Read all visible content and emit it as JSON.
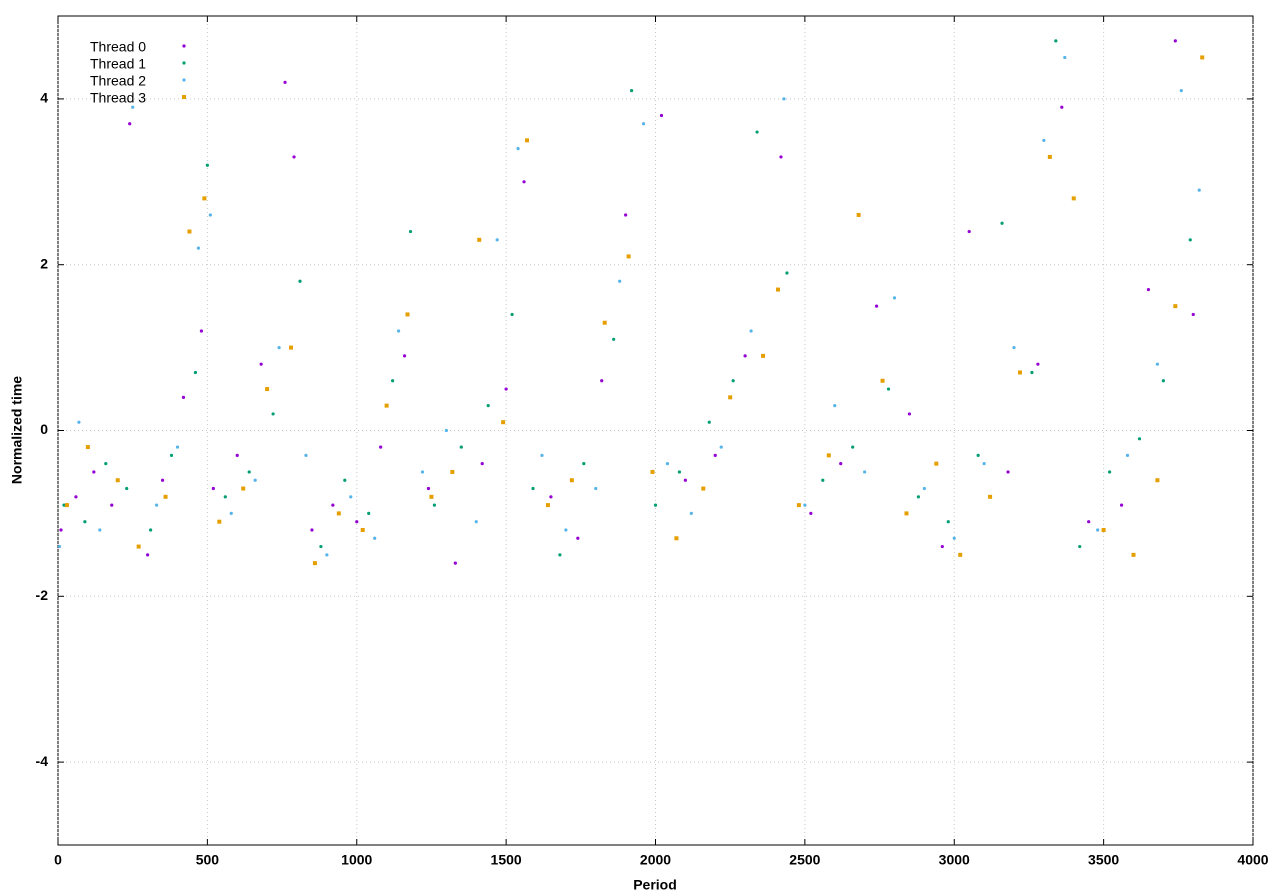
{
  "chart_data": {
    "type": "scatter",
    "x_label": "Period",
    "y_label": "Normalized time",
    "xlim": [
      0,
      4000
    ],
    "ylim": [
      -5,
      5
    ],
    "xticks": [
      0,
      500,
      1000,
      1500,
      2000,
      2500,
      3000,
      3500,
      4000
    ],
    "yticks": [
      -4,
      -2,
      0,
      2,
      4
    ],
    "grid": true,
    "legend": "top-left",
    "series": [
      {
        "name": "Thread 0",
        "color": "#9400d3",
        "marker": "dot",
        "x": [
          10,
          60,
          120,
          180,
          240,
          300,
          350,
          420,
          480,
          520,
          600,
          680,
          760,
          790,
          850,
          920,
          1000,
          1080,
          1160,
          1240,
          1330,
          1420,
          1500,
          1560,
          1650,
          1740,
          1820,
          1900,
          2020,
          2100,
          2200,
          2300,
          2420,
          2520,
          2620,
          2740,
          2850,
          2960,
          3050,
          3180,
          3280,
          3360,
          3450,
          3560,
          3650,
          3740,
          3800
        ],
        "values": [
          -1.2,
          -0.8,
          -0.5,
          -0.9,
          3.7,
          -1.5,
          -0.6,
          0.4,
          1.2,
          -0.7,
          -0.3,
          0.8,
          4.2,
          3.3,
          -1.2,
          -0.9,
          -1.1,
          -0.2,
          0.9,
          -0.7,
          -1.6,
          -0.4,
          0.5,
          3.0,
          -0.8,
          -1.3,
          0.6,
          2.6,
          3.8,
          -0.6,
          -0.3,
          0.9,
          3.3,
          -1.0,
          -0.4,
          1.5,
          0.2,
          -1.4,
          2.4,
          -0.5,
          0.8,
          3.9,
          -1.1,
          -0.9,
          1.7,
          4.7,
          1.4
        ]
      },
      {
        "name": "Thread 1",
        "color": "#009e73",
        "marker": "dot",
        "x": [
          20,
          90,
          160,
          230,
          310,
          380,
          460,
          500,
          560,
          640,
          720,
          810,
          880,
          960,
          1040,
          1120,
          1180,
          1260,
          1350,
          1440,
          1520,
          1590,
          1680,
          1760,
          1860,
          1920,
          2000,
          2080,
          2180,
          2260,
          2340,
          2440,
          2560,
          2660,
          2780,
          2880,
          2980,
          3080,
          3160,
          3260,
          3340,
          3420,
          3520,
          3620,
          3700,
          3790
        ],
        "values": [
          -0.9,
          -1.1,
          -0.4,
          -0.7,
          -1.2,
          -0.3,
          0.7,
          3.2,
          -0.8,
          -0.5,
          0.2,
          1.8,
          -1.4,
          -0.6,
          -1.0,
          0.6,
          2.4,
          -0.9,
          -0.2,
          0.3,
          1.4,
          -0.7,
          -1.5,
          -0.4,
          1.1,
          4.1,
          -0.9,
          -0.5,
          0.1,
          0.6,
          3.6,
          1.9,
          -0.6,
          -0.2,
          0.5,
          -0.8,
          -1.1,
          -0.3,
          2.5,
          0.7,
          4.7,
          -1.4,
          -0.5,
          -0.1,
          0.6,
          2.3
        ]
      },
      {
        "name": "Thread 2",
        "color": "#56b4e9",
        "marker": "dot",
        "x": [
          5,
          70,
          140,
          250,
          330,
          400,
          470,
          510,
          580,
          660,
          740,
          830,
          900,
          980,
          1060,
          1140,
          1220,
          1300,
          1400,
          1470,
          1540,
          1620,
          1700,
          1800,
          1880,
          1960,
          2040,
          2120,
          2220,
          2320,
          2430,
          2500,
          2600,
          2700,
          2800,
          2900,
          3000,
          3100,
          3200,
          3300,
          3370,
          3480,
          3580,
          3680,
          3760,
          3820
        ],
        "values": [
          -1.4,
          0.1,
          -1.2,
          3.9,
          -0.9,
          -0.2,
          2.2,
          2.6,
          -1.0,
          -0.6,
          1.0,
          -0.3,
          -1.5,
          -0.8,
          -1.3,
          1.2,
          -0.5,
          0,
          -1.1,
          2.3,
          3.4,
          -0.3,
          -1.2,
          -0.7,
          1.8,
          3.7,
          -0.4,
          -1.0,
          -0.2,
          1.2,
          4.0,
          -0.9,
          0.3,
          -0.5,
          1.6,
          -0.7,
          -1.3,
          -0.4,
          1.0,
          3.5,
          4.5,
          -1.2,
          -0.3,
          0.8,
          4.1,
          2.9
        ]
      },
      {
        "name": "Thread 3",
        "color": "#e69f00",
        "marker": "square",
        "x": [
          30,
          100,
          200,
          270,
          360,
          440,
          490,
          540,
          620,
          700,
          780,
          860,
          940,
          1020,
          1100,
          1170,
          1250,
          1320,
          1410,
          1490,
          1570,
          1640,
          1720,
          1830,
          1910,
          1990,
          2070,
          2160,
          2250,
          2360,
          2410,
          2480,
          2580,
          2680,
          2760,
          2840,
          2940,
          3020,
          3120,
          3220,
          3320,
          3400,
          3500,
          3600,
          3680,
          3740,
          3830
        ],
        "values": [
          -0.9,
          -0.2,
          -0.6,
          -1.4,
          -0.8,
          2.4,
          2.8,
          -1.1,
          -0.7,
          0.5,
          1.0,
          -1.6,
          -1.0,
          -1.2,
          0.3,
          1.4,
          -0.8,
          -0.5,
          2.3,
          0.1,
          3.5,
          -0.9,
          -0.6,
          1.3,
          2.1,
          -0.5,
          -1.3,
          -0.7,
          0.4,
          0.9,
          1.7,
          -0.9,
          -0.3,
          2.6,
          0.6,
          -1.0,
          -0.4,
          -1.5,
          -0.8,
          0.7,
          3.3,
          2.8,
          -1.2,
          -1.5,
          -0.6,
          1.5,
          4.5
        ]
      }
    ]
  }
}
